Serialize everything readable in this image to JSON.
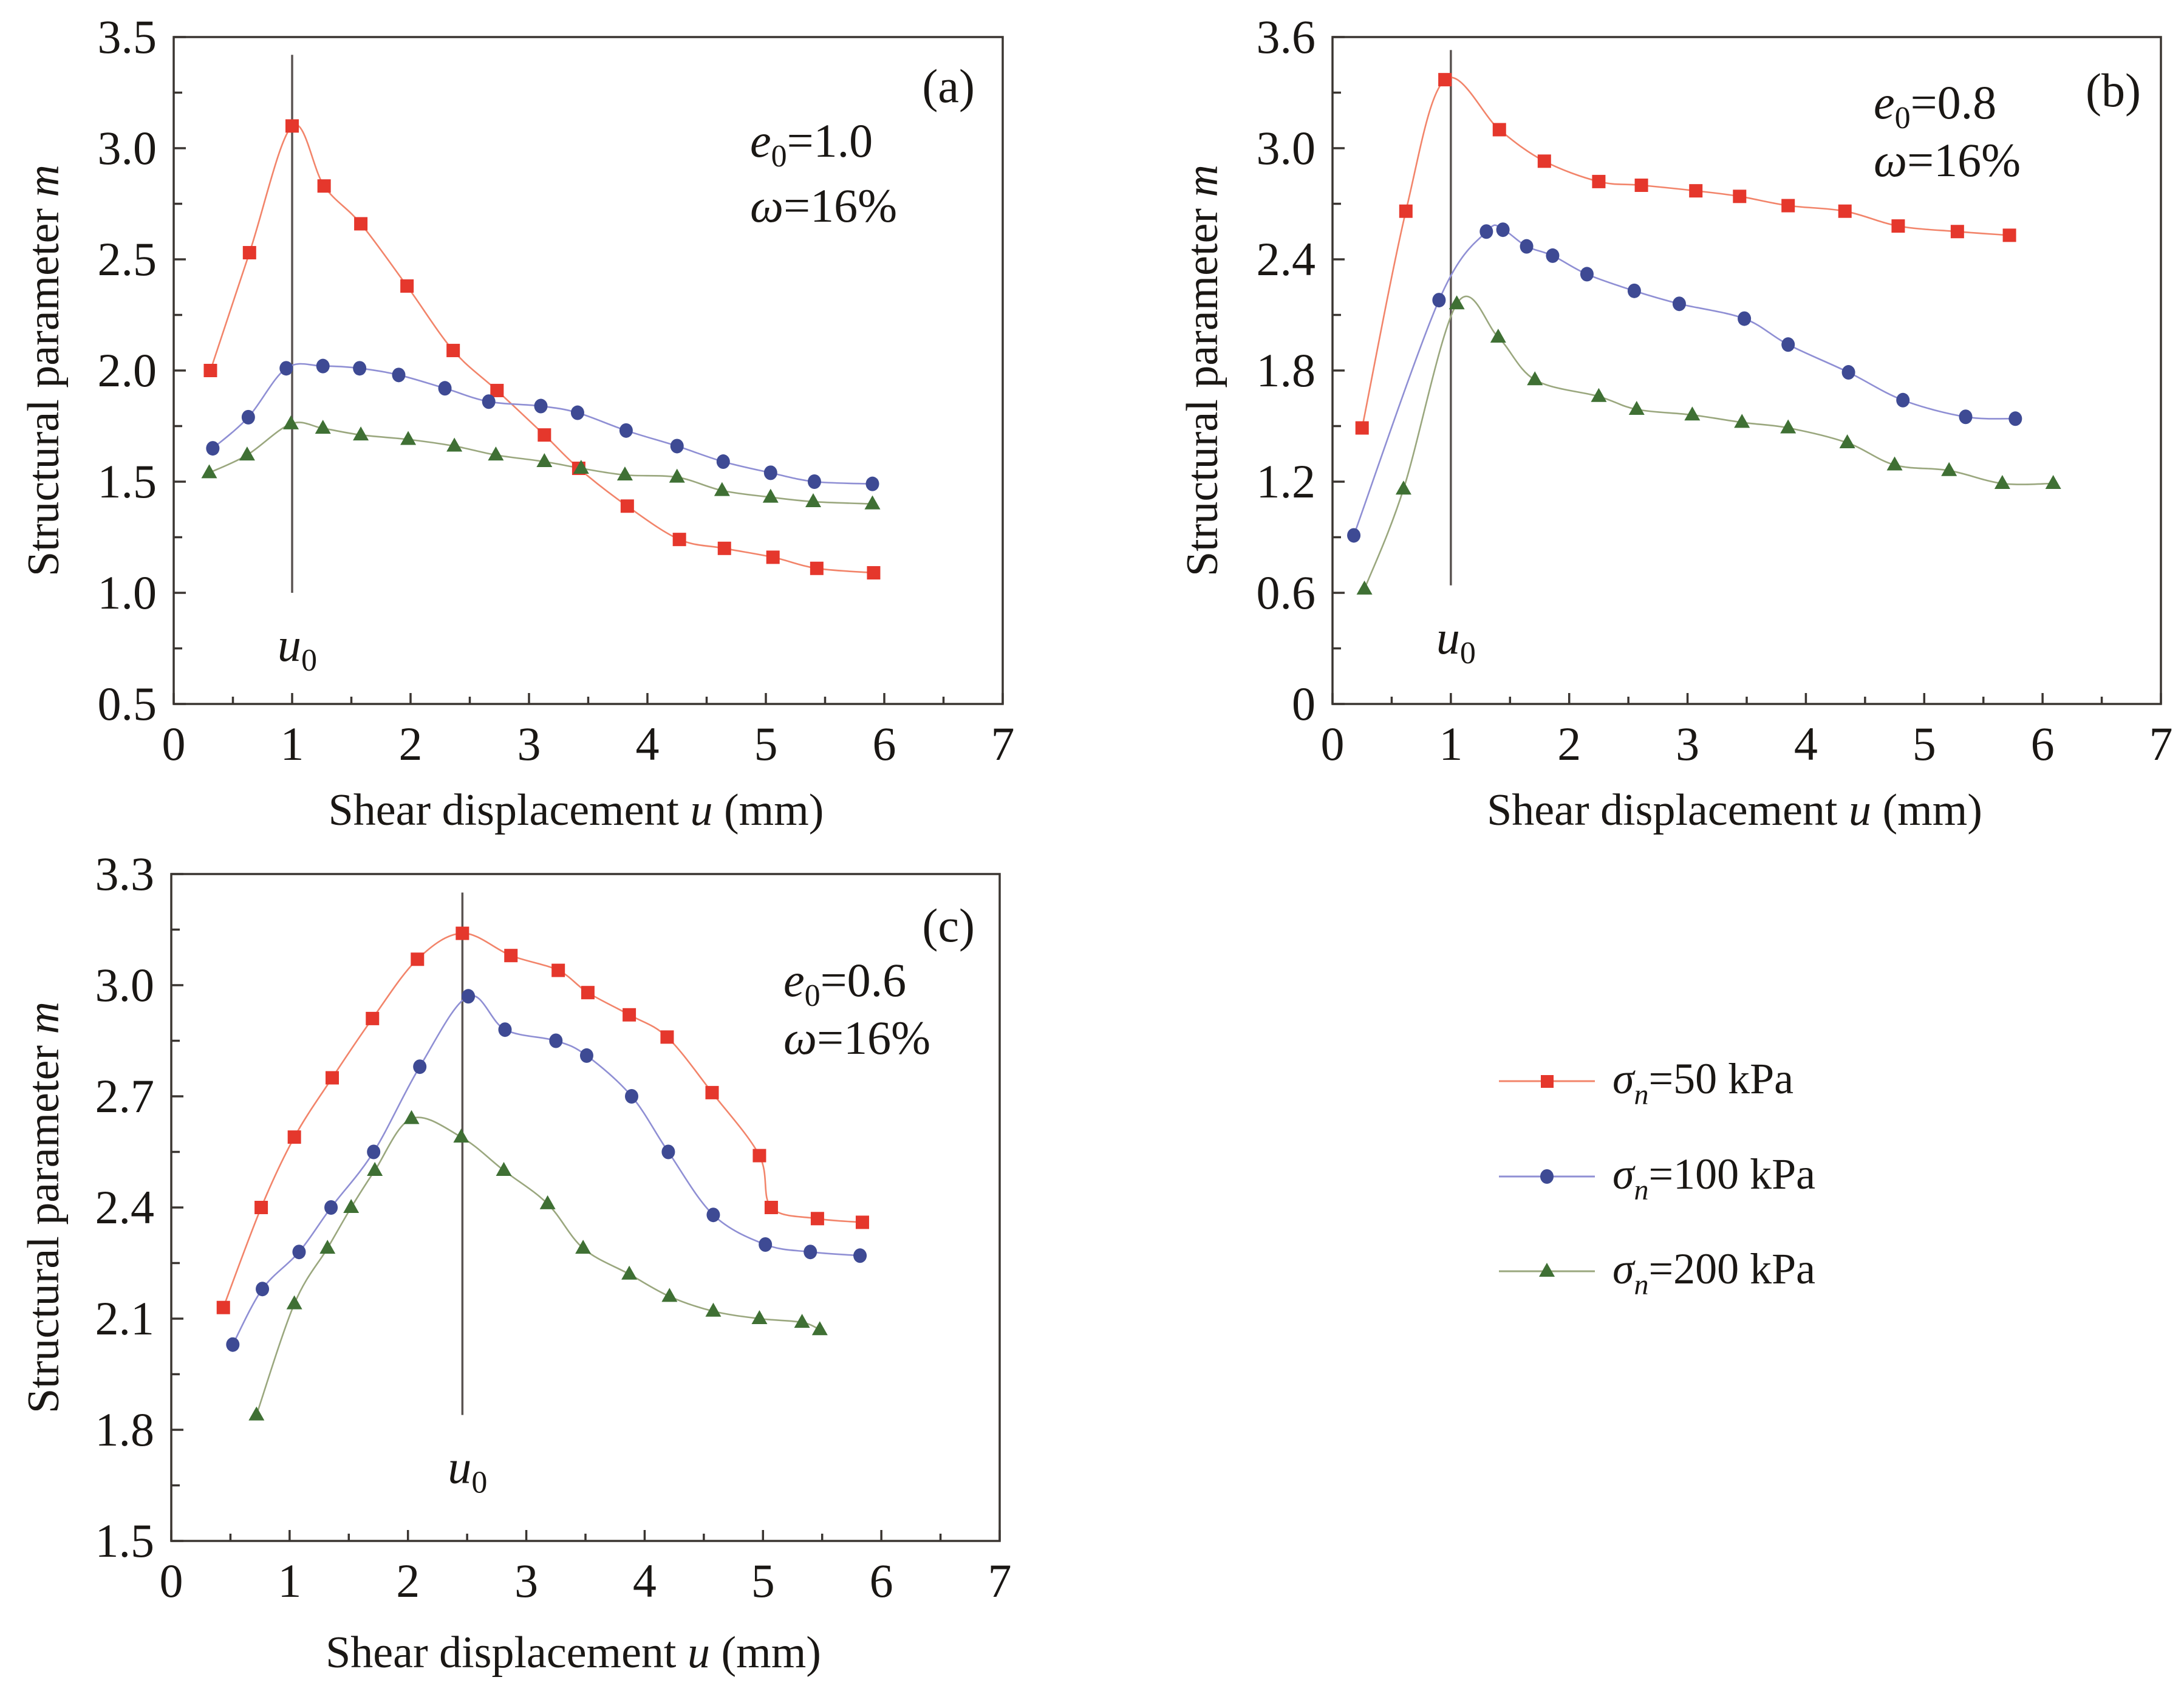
{
  "figure": {
    "legend": [
      {
        "label_symbol": "σ",
        "label_sub": "n",
        "label_rest": "=50 kPa",
        "series": "s50"
      },
      {
        "label_symbol": "σ",
        "label_sub": "n",
        "label_rest": "=100 kPa",
        "series": "s100"
      },
      {
        "label_symbol": "σ",
        "label_sub": "n",
        "label_rest": "=200 kPa",
        "series": "s200"
      }
    ],
    "series_styles": {
      "s50": {
        "marker": "square",
        "marker_color": "#e5372c",
        "line_color": "#f2846a"
      },
      "s100": {
        "marker": "circle",
        "marker_color": "#3e4a94",
        "line_color": "#8f8fd4"
      },
      "s200": {
        "marker": "triangle",
        "marker_color": "#3f7034",
        "line_color": "#9aa77e"
      }
    }
  },
  "chart_data": [
    {
      "type": "line",
      "panel": "(a)",
      "xlabel_main": "Shear displacement ",
      "xlabel_var": "u",
      "xlabel_unit": " (mm)",
      "ylabel_main": "Structural parameter ",
      "ylabel_var": "m",
      "xlim": [
        0,
        7
      ],
      "ylim": [
        0.5,
        3.5
      ],
      "xticks": [
        0,
        1,
        2,
        3,
        4,
        5,
        6,
        7
      ],
      "xticks_minor": [
        0.5,
        1.5,
        2.5,
        3.5,
        4.5,
        5.5,
        6.5
      ],
      "yticks": [
        0.5,
        1.0,
        1.5,
        2.0,
        2.5,
        3.0,
        3.5
      ],
      "yticks_minor": [
        0.75,
        1.25,
        1.75,
        2.25,
        2.75,
        3.25
      ],
      "ytick_labels": [
        "0.5",
        "1.0",
        "1.5",
        "2.0",
        "2.5",
        "3.0",
        "3.5"
      ],
      "annotation_e0": "=1.0",
      "annotation_omega": "=16%",
      "u0": {
        "x": 1.0,
        "y_from": 1.0,
        "y_to": 3.42,
        "label": "u",
        "label_sub": "0"
      },
      "legend_position": "none",
      "series": [
        {
          "name": "σn=50 kPa",
          "key": "s50",
          "x": [
            0.31,
            0.64,
            1.0,
            1.27,
            1.58,
            1.97,
            2.36,
            2.73,
            3.13,
            3.42,
            3.83,
            4.27,
            4.65,
            5.06,
            5.43,
            5.91
          ],
          "y": [
            2.0,
            2.53,
            3.1,
            2.83,
            2.66,
            2.38,
            2.09,
            1.91,
            1.71,
            1.56,
            1.39,
            1.24,
            1.2,
            1.16,
            1.11,
            1.09
          ]
        },
        {
          "name": "σn=100 kPa",
          "key": "s100",
          "x": [
            0.33,
            0.63,
            0.95,
            1.26,
            1.57,
            1.9,
            2.29,
            2.66,
            3.1,
            3.41,
            3.82,
            4.25,
            4.64,
            5.04,
            5.41,
            5.9
          ],
          "y": [
            1.65,
            1.79,
            2.01,
            2.02,
            2.01,
            1.98,
            1.92,
            1.86,
            1.84,
            1.81,
            1.73,
            1.66,
            1.59,
            1.54,
            1.5,
            1.49
          ]
        },
        {
          "name": "σn=200 kPa",
          "key": "s200",
          "x": [
            0.3,
            0.62,
            0.99,
            1.26,
            1.58,
            1.98,
            2.37,
            2.72,
            3.13,
            3.44,
            3.81,
            4.25,
            4.63,
            5.04,
            5.4,
            5.9
          ],
          "y": [
            1.54,
            1.62,
            1.76,
            1.74,
            1.71,
            1.69,
            1.66,
            1.62,
            1.59,
            1.56,
            1.53,
            1.52,
            1.46,
            1.43,
            1.41,
            1.4
          ]
        }
      ]
    },
    {
      "type": "line",
      "panel": "(b)",
      "xlabel_main": "Shear displacement ",
      "xlabel_var": "u",
      "xlabel_unit": " (mm)",
      "ylabel_main": "Structural parameter ",
      "ylabel_var": "m",
      "xlim": [
        0,
        7
      ],
      "ylim": [
        0,
        3.6
      ],
      "xticks": [
        0,
        1,
        2,
        3,
        4,
        5,
        6,
        7
      ],
      "xticks_minor": [
        0.5,
        1.5,
        2.5,
        3.5,
        4.5,
        5.5,
        6.5
      ],
      "yticks": [
        0,
        0.6,
        1.2,
        1.8,
        2.4,
        3.0,
        3.6
      ],
      "yticks_minor": [
        0.3,
        0.9,
        1.5,
        2.1,
        2.7,
        3.3
      ],
      "ytick_labels": [
        "0",
        "0.6",
        "1.2",
        "1.8",
        "2.4",
        "3.0",
        "3.6"
      ],
      "annotation_e0": "=0.8",
      "annotation_omega": "=16%",
      "u0": {
        "x": 1.0,
        "y_from": 0.64,
        "y_to": 3.53,
        "label": "u",
        "label_sub": "0"
      },
      "legend_position": "none",
      "series": [
        {
          "name": "σn=50 kPa",
          "key": "s50",
          "x": [
            0.25,
            0.62,
            0.95,
            1.41,
            1.79,
            2.25,
            2.61,
            3.07,
            3.44,
            3.85,
            4.33,
            4.78,
            5.28,
            5.72
          ],
          "y": [
            1.49,
            2.66,
            3.37,
            3.1,
            2.93,
            2.82,
            2.8,
            2.77,
            2.74,
            2.69,
            2.66,
            2.58,
            2.55,
            2.53
          ]
        },
        {
          "name": "σn=100 kPa",
          "key": "s100",
          "x": [
            0.18,
            0.9,
            1.3,
            1.44,
            1.64,
            1.86,
            2.15,
            2.55,
            2.93,
            3.48,
            3.85,
            4.36,
            4.82,
            5.35,
            5.77
          ],
          "y": [
            0.91,
            2.18,
            2.55,
            2.56,
            2.47,
            2.42,
            2.32,
            2.23,
            2.16,
            2.08,
            1.94,
            1.79,
            1.64,
            1.55,
            1.54
          ]
        },
        {
          "name": "σn=200 kPa",
          "key": "s200",
          "x": [
            0.27,
            0.6,
            1.05,
            1.4,
            1.71,
            2.25,
            2.57,
            3.04,
            3.46,
            3.85,
            4.35,
            4.75,
            5.21,
            5.66,
            6.09
          ],
          "y": [
            0.62,
            1.16,
            2.16,
            1.98,
            1.75,
            1.66,
            1.59,
            1.56,
            1.52,
            1.49,
            1.41,
            1.29,
            1.26,
            1.19,
            1.19
          ]
        }
      ]
    },
    {
      "type": "line",
      "panel": "(c)",
      "xlabel_main": "Shear displacement ",
      "xlabel_var": "u",
      "xlabel_unit": " (mm)",
      "ylabel_main": "Structural parameter ",
      "ylabel_var": "m",
      "xlim": [
        0,
        7
      ],
      "ylim": [
        1.5,
        3.3
      ],
      "xticks": [
        0,
        1,
        2,
        3,
        4,
        5,
        6,
        7
      ],
      "xticks_minor": [
        0.5,
        1.5,
        2.5,
        3.5,
        4.5,
        5.5,
        6.5
      ],
      "yticks": [
        1.5,
        1.8,
        2.1,
        2.4,
        2.7,
        3.0,
        3.3
      ],
      "yticks_minor": [
        1.65,
        1.95,
        2.25,
        2.55,
        2.85,
        3.15
      ],
      "ytick_labels": [
        "1.5",
        "1.8",
        "2.1",
        "2.4",
        "2.7",
        "3.0",
        "3.3"
      ],
      "annotation_e0": "=0.6",
      "annotation_omega": "=16%",
      "u0": {
        "x": 2.46,
        "y_from": 1.84,
        "y_to": 3.25,
        "label": "u",
        "label_sub": "0"
      },
      "legend_position": "right",
      "series": [
        {
          "name": "σn=50 kPa",
          "key": "s50",
          "x": [
            0.44,
            0.76,
            1.04,
            1.36,
            1.7,
            2.08,
            2.46,
            2.87,
            3.27,
            3.52,
            3.87,
            4.19,
            4.57,
            4.97,
            5.07,
            5.46,
            5.84
          ],
          "y": [
            2.13,
            2.4,
            2.59,
            2.75,
            2.91,
            3.07,
            3.14,
            3.08,
            3.04,
            2.98,
            2.92,
            2.86,
            2.71,
            2.54,
            2.4,
            2.37,
            2.36
          ]
        },
        {
          "name": "σn=100 kPa",
          "key": "s100",
          "x": [
            0.52,
            0.77,
            1.08,
            1.35,
            1.71,
            2.1,
            2.51,
            2.82,
            3.25,
            3.51,
            3.89,
            4.2,
            4.58,
            5.02,
            5.4,
            5.82
          ],
          "y": [
            2.03,
            2.18,
            2.28,
            2.4,
            2.55,
            2.78,
            2.97,
            2.88,
            2.85,
            2.81,
            2.7,
            2.55,
            2.38,
            2.3,
            2.28,
            2.27
          ]
        },
        {
          "name": "σn=200 kPa",
          "key": "s200",
          "x": [
            0.72,
            1.04,
            1.32,
            1.52,
            1.72,
            2.03,
            2.45,
            2.81,
            3.18,
            3.48,
            3.87,
            4.21,
            4.58,
            4.97,
            5.33,
            5.48
          ],
          "y": [
            1.84,
            2.14,
            2.29,
            2.4,
            2.5,
            2.64,
            2.59,
            2.5,
            2.41,
            2.29,
            2.22,
            2.16,
            2.12,
            2.1,
            2.09,
            2.07
          ]
        }
      ]
    }
  ]
}
